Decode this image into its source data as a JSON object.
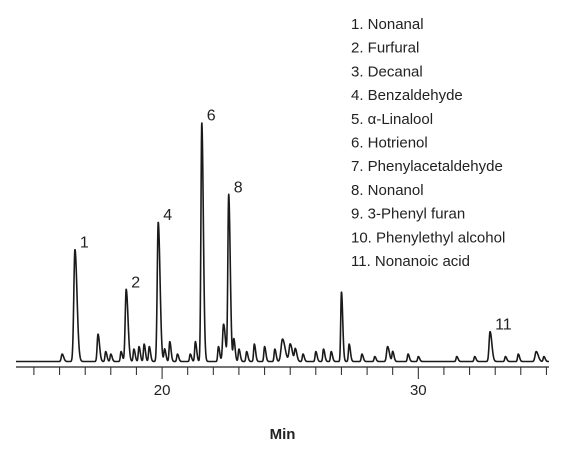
{
  "chart_data": {
    "type": "line",
    "title": "",
    "xlabel": "Min",
    "ylabel": "",
    "xlim": [
      14.3,
      35.1
    ],
    "ylim": [
      0,
      100
    ],
    "major_ticks": [
      20,
      30
    ],
    "minor_tick_step": 1,
    "grid": false,
    "legend_placement": "top-right",
    "baseline": 1,
    "peaks": [
      {
        "x": 16.1,
        "y": 3,
        "w": 0.06
      },
      {
        "x": 16.6,
        "y": 45,
        "w": 0.08,
        "label": "1"
      },
      {
        "x": 17.5,
        "y": 11,
        "w": 0.06
      },
      {
        "x": 17.8,
        "y": 4,
        "w": 0.05
      },
      {
        "x": 18.0,
        "y": 3,
        "w": 0.05
      },
      {
        "x": 18.4,
        "y": 4,
        "w": 0.05
      },
      {
        "x": 18.6,
        "y": 29,
        "w": 0.07,
        "label": "2"
      },
      {
        "x": 18.9,
        "y": 5,
        "w": 0.05
      },
      {
        "x": 19.1,
        "y": 6,
        "w": 0.05
      },
      {
        "x": 19.3,
        "y": 7,
        "w": 0.05
      },
      {
        "x": 19.5,
        "y": 6,
        "w": 0.05
      },
      {
        "x": 19.85,
        "y": 56,
        "w": 0.07,
        "label": "4"
      },
      {
        "x": 20.1,
        "y": 5,
        "w": 0.05
      },
      {
        "x": 20.3,
        "y": 8,
        "w": 0.05
      },
      {
        "x": 20.6,
        "y": 3,
        "w": 0.05
      },
      {
        "x": 21.1,
        "y": 3,
        "w": 0.05
      },
      {
        "x": 21.3,
        "y": 8,
        "w": 0.05
      },
      {
        "x": 21.55,
        "y": 96,
        "w": 0.06,
        "label": "6"
      },
      {
        "x": 22.2,
        "y": 6,
        "w": 0.05
      },
      {
        "x": 22.4,
        "y": 15,
        "w": 0.07
      },
      {
        "x": 22.6,
        "y": 67,
        "w": 0.06,
        "label": "8"
      },
      {
        "x": 22.8,
        "y": 9,
        "w": 0.05
      },
      {
        "x": 23.0,
        "y": 5,
        "w": 0.05
      },
      {
        "x": 23.3,
        "y": 4,
        "w": 0.05
      },
      {
        "x": 23.6,
        "y": 7,
        "w": 0.05
      },
      {
        "x": 24.0,
        "y": 6,
        "w": 0.05
      },
      {
        "x": 24.4,
        "y": 5,
        "w": 0.05
      },
      {
        "x": 24.7,
        "y": 9,
        "w": 0.1
      },
      {
        "x": 25.0,
        "y": 7,
        "w": 0.08
      },
      {
        "x": 25.2,
        "y": 5,
        "w": 0.06
      },
      {
        "x": 25.5,
        "y": 3,
        "w": 0.05
      },
      {
        "x": 26.0,
        "y": 4,
        "w": 0.05
      },
      {
        "x": 26.3,
        "y": 5,
        "w": 0.05
      },
      {
        "x": 26.6,
        "y": 4,
        "w": 0.05
      },
      {
        "x": 27.0,
        "y": 28,
        "w": 0.05
      },
      {
        "x": 27.3,
        "y": 7,
        "w": 0.05
      },
      {
        "x": 27.8,
        "y": 3,
        "w": 0.05
      },
      {
        "x": 28.3,
        "y": 2,
        "w": 0.05
      },
      {
        "x": 28.8,
        "y": 6,
        "w": 0.07
      },
      {
        "x": 29.0,
        "y": 4,
        "w": 0.05
      },
      {
        "x": 29.6,
        "y": 3,
        "w": 0.05
      },
      {
        "x": 30.0,
        "y": 2,
        "w": 0.05
      },
      {
        "x": 31.5,
        "y": 2,
        "w": 0.05
      },
      {
        "x": 32.2,
        "y": 2,
        "w": 0.05
      },
      {
        "x": 32.8,
        "y": 12,
        "w": 0.07,
        "label": "11"
      },
      {
        "x": 33.4,
        "y": 2,
        "w": 0.05
      },
      {
        "x": 33.9,
        "y": 3,
        "w": 0.05
      },
      {
        "x": 34.6,
        "y": 4,
        "w": 0.08
      },
      {
        "x": 34.9,
        "y": 2,
        "w": 0.05
      }
    ],
    "legend": [
      "1. Nonanal",
      "2. Furfural",
      "3. Decanal",
      "4. Benzaldehyde",
      "5. α-Linalool",
      "6. Hotrienol",
      "7. Phenylacetaldehyde",
      "8. Nonanol",
      "9. 3-Phenyl furan",
      "10. Phenylethyl alcohol",
      "11. Nonanoic acid"
    ]
  }
}
